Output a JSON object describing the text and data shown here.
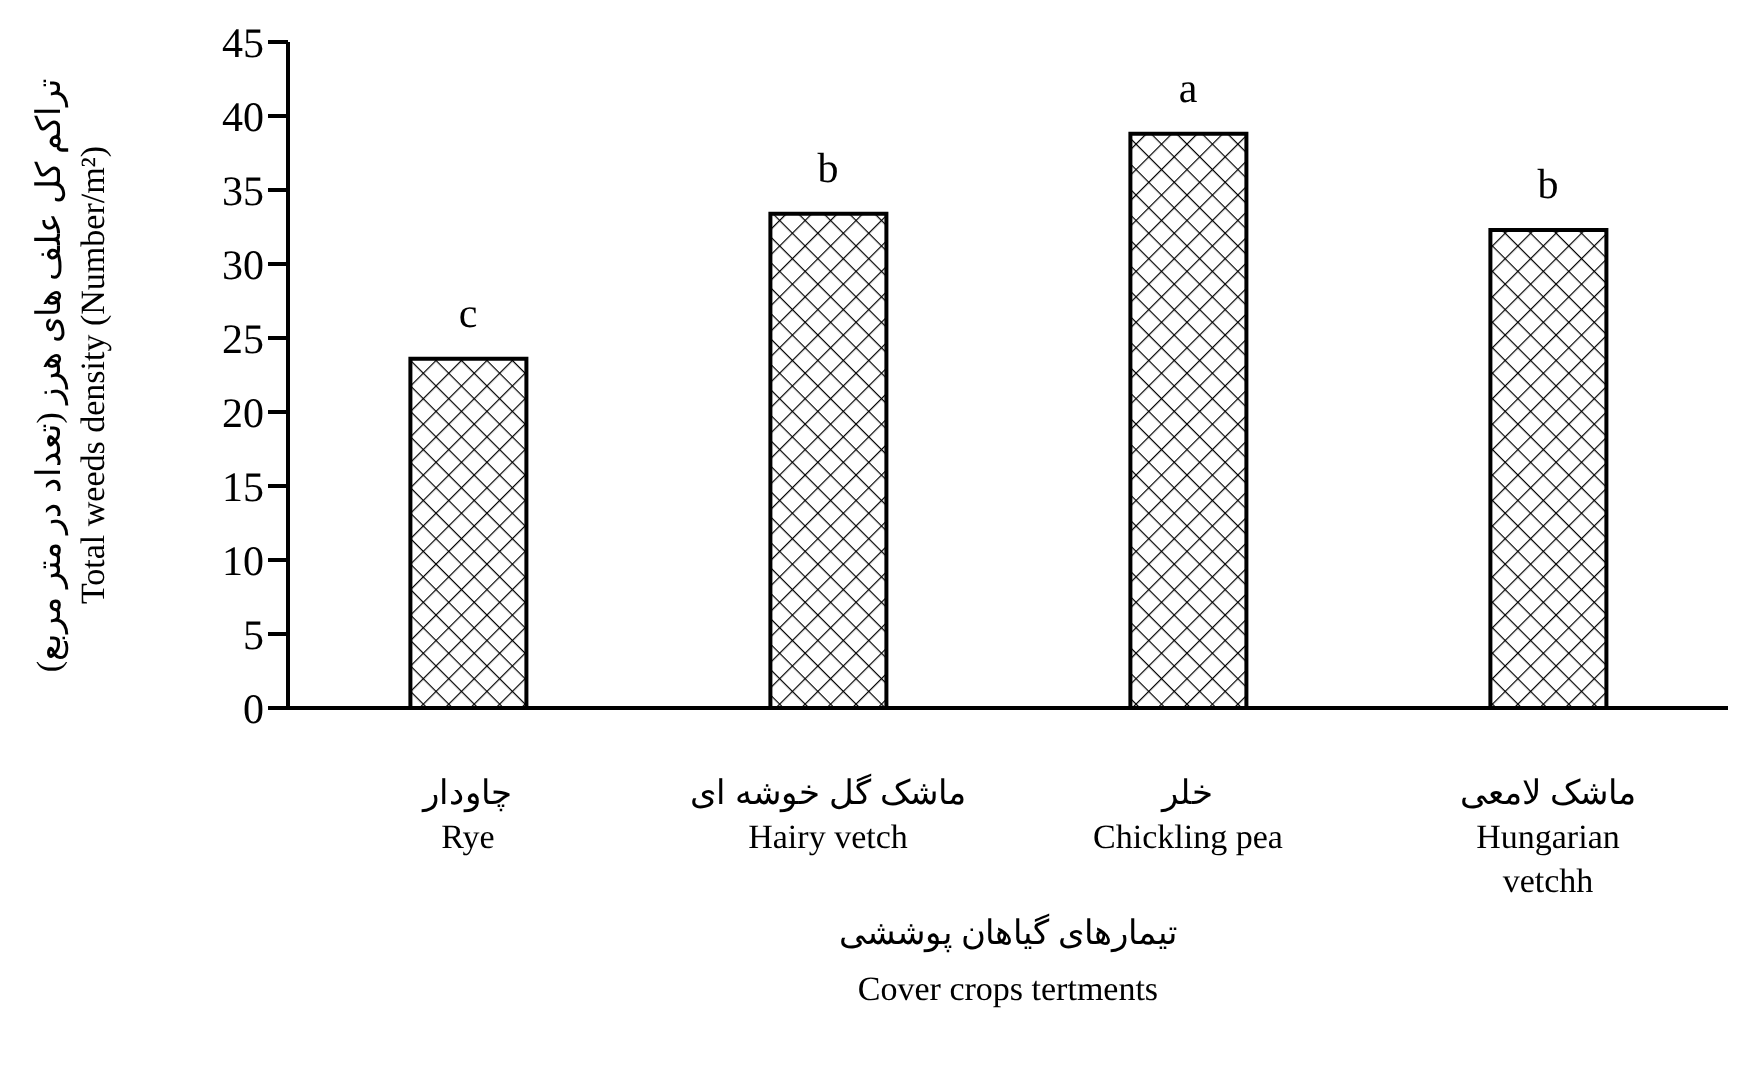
{
  "chart_data": {
    "type": "bar",
    "xlabel": "تیمارهای گیاهان پوششی\nCover crops tertments",
    "ylabel": "تراکم کل علف های هرز (تعداد در متر مربع)\nTotal weeds density (Number/m²)",
    "categories": [
      "چاودار\nRye",
      "ماشک گل خوشه ای\nHairy vetch",
      "خلر\nChickling pea",
      "ماشک لامعی\nHungarian\nvetchh"
    ],
    "series": [
      {
        "color": "#000000",
        "values": [
          23.6,
          33.4,
          38.8,
          32.3
        ]
      }
    ],
    "ylim": [
      0,
      45
    ],
    "yticks": [
      0,
      5,
      10,
      15,
      20,
      25,
      30,
      35,
      40,
      45
    ],
    "annotations": [
      {
        "text": "c",
        "x": "چاودار\nRye",
        "y": 23.6
      },
      {
        "text": "b",
        "x": "ماشک گل خوشه ای\nHairy vetch",
        "y": 33.4
      },
      {
        "text": "a",
        "x": "خلر\nChickling pea",
        "y": 38.8
      },
      {
        "text": "b",
        "x": "ماشک لامعی\nHungarian\nvetchh",
        "y": 32.3
      }
    ],
    "grid": false,
    "legend": false
  }
}
